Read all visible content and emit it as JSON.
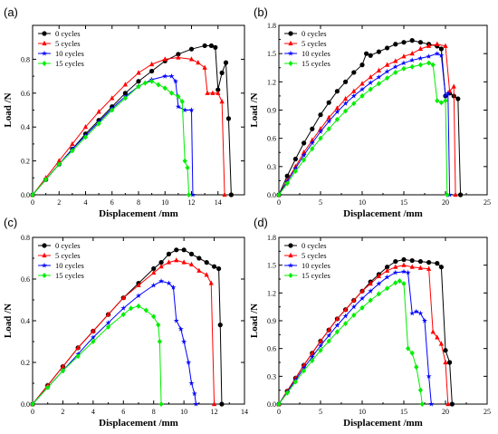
{
  "chart_data": [
    {
      "type": "line",
      "panel_label": "(a)",
      "xlabel": "Displacement /mm",
      "ylabel": "Load /N",
      "xlim": [
        0,
        16
      ],
      "ylim": [
        0,
        1.0
      ],
      "xticks": [
        "0",
        "2",
        "4",
        "6",
        "8",
        "10",
        "12",
        "14"
      ],
      "yticks": [
        "0.0",
        "0.2",
        "0.4",
        "0.6",
        "0.8"
      ],
      "legend_position": "top-left",
      "series": [
        {
          "name": "0 cycles",
          "color": "#000000",
          "marker": "circle",
          "x": [
            0,
            1,
            2,
            3,
            4,
            5,
            6,
            7,
            8,
            9,
            10,
            11,
            12,
            13,
            13.5,
            13.8,
            14.0,
            14.3,
            14.6,
            14.8,
            15.0
          ],
          "y": [
            0,
            0.09,
            0.18,
            0.27,
            0.36,
            0.44,
            0.52,
            0.6,
            0.67,
            0.73,
            0.79,
            0.83,
            0.86,
            0.88,
            0.88,
            0.87,
            0.62,
            0.72,
            0.78,
            0.45,
            0.0
          ]
        },
        {
          "name": "5 cycles",
          "color": "#ff0000",
          "marker": "triangle",
          "x": [
            0,
            1,
            2,
            3,
            4,
            5,
            6,
            7,
            8,
            9,
            10,
            11,
            12,
            12.5,
            13.0,
            13.2,
            13.6,
            14.0,
            14.3,
            14.5
          ],
          "y": [
            0,
            0.1,
            0.2,
            0.3,
            0.4,
            0.49,
            0.57,
            0.65,
            0.72,
            0.77,
            0.8,
            0.81,
            0.8,
            0.78,
            0.75,
            0.6,
            0.6,
            0.6,
            0.55,
            0.0
          ]
        },
        {
          "name": "10 cycles",
          "color": "#0000ff",
          "marker": "star",
          "x": [
            0,
            1,
            2,
            3,
            4,
            5,
            6,
            7,
            8,
            9,
            10,
            10.5,
            10.8,
            11.0,
            11.5,
            12.0,
            12.1
          ],
          "y": [
            0,
            0.09,
            0.18,
            0.27,
            0.35,
            0.43,
            0.51,
            0.58,
            0.64,
            0.68,
            0.7,
            0.7,
            0.67,
            0.52,
            0.5,
            0.5,
            0.0
          ]
        },
        {
          "name": "15 cycles",
          "color": "#00ee00",
          "marker": "diamond",
          "x": [
            0,
            1,
            2,
            3,
            4,
            5,
            6,
            7,
            8,
            8.5,
            9.0,
            9.5,
            10.0,
            10.5,
            11.0,
            11.3,
            11.5,
            11.7,
            11.8
          ],
          "y": [
            0,
            0.09,
            0.18,
            0.26,
            0.34,
            0.42,
            0.5,
            0.57,
            0.64,
            0.66,
            0.67,
            0.65,
            0.63,
            0.6,
            0.58,
            0.55,
            0.2,
            0.16,
            0.0
          ]
        }
      ]
    },
    {
      "type": "line",
      "panel_label": "(b)",
      "xlabel": "Displacement /mm",
      "ylabel": "Load /N",
      "xlim": [
        0,
        25
      ],
      "ylim": [
        0,
        1.8
      ],
      "xticks": [
        "0",
        "5",
        "10",
        "15",
        "20",
        "25"
      ],
      "yticks": [
        "0.0",
        "0.3",
        "0.6",
        "0.9",
        "1.2",
        "1.5",
        "1.8"
      ],
      "legend_position": "top-left",
      "series": [
        {
          "name": "0 cycles",
          "color": "#000000",
          "marker": "circle",
          "x": [
            0,
            1,
            2,
            3,
            4,
            5,
            6,
            7,
            8,
            9,
            10,
            10.5,
            11,
            12,
            13,
            14,
            15,
            16,
            17,
            18,
            19,
            19.5,
            20,
            20.5,
            21,
            21.5,
            21.8
          ],
          "y": [
            0,
            0.2,
            0.38,
            0.55,
            0.7,
            0.85,
            0.98,
            1.1,
            1.2,
            1.3,
            1.38,
            1.5,
            1.48,
            1.52,
            1.56,
            1.6,
            1.62,
            1.64,
            1.62,
            1.6,
            1.58,
            1.55,
            1.05,
            1.08,
            1.05,
            1.02,
            0.0
          ]
        },
        {
          "name": "5 cycles",
          "color": "#ff0000",
          "marker": "triangle",
          "x": [
            0,
            1,
            2,
            3,
            4,
            5,
            6,
            7,
            8,
            9,
            10,
            11,
            12,
            13,
            14,
            15,
            16,
            17,
            18,
            19,
            20,
            20.5,
            21,
            21.2
          ],
          "y": [
            0,
            0.15,
            0.3,
            0.45,
            0.58,
            0.7,
            0.82,
            0.92,
            1.02,
            1.1,
            1.18,
            1.25,
            1.32,
            1.38,
            1.42,
            1.47,
            1.5,
            1.55,
            1.58,
            1.6,
            1.58,
            1.1,
            1.15,
            0.0
          ]
        },
        {
          "name": "10 cycles",
          "color": "#0000ff",
          "marker": "star",
          "x": [
            0,
            1,
            2,
            3,
            4,
            5,
            6,
            7,
            8,
            9,
            10,
            11,
            12,
            13,
            14,
            15,
            16,
            17,
            18,
            19,
            19.5,
            20,
            20.3,
            20.5
          ],
          "y": [
            0,
            0.14,
            0.28,
            0.42,
            0.55,
            0.67,
            0.78,
            0.88,
            0.97,
            1.05,
            1.12,
            1.19,
            1.25,
            1.31,
            1.36,
            1.4,
            1.43,
            1.45,
            1.47,
            1.5,
            1.48,
            1.05,
            1.08,
            0.0
          ]
        },
        {
          "name": "15 cycles",
          "color": "#00ee00",
          "marker": "diamond",
          "x": [
            0,
            1,
            2,
            3,
            4,
            5,
            6,
            7,
            8,
            9,
            10,
            11,
            12,
            13,
            14,
            15,
            16,
            17,
            18,
            18.5,
            19,
            19.5,
            20,
            20.2
          ],
          "y": [
            0,
            0.12,
            0.25,
            0.37,
            0.49,
            0.6,
            0.7,
            0.8,
            0.89,
            0.97,
            1.05,
            1.12,
            1.18,
            1.24,
            1.3,
            1.34,
            1.36,
            1.38,
            1.4,
            1.38,
            1.0,
            0.98,
            1.0,
            0.0
          ]
        }
      ]
    },
    {
      "type": "line",
      "panel_label": "(c)",
      "xlabel": "Displacement /mm",
      "ylabel": "Load /N",
      "xlim": [
        0,
        14
      ],
      "ylim": [
        0,
        0.8
      ],
      "xticks": [
        "0",
        "2",
        "4",
        "6",
        "8",
        "10",
        "12",
        "14"
      ],
      "yticks": [
        "0.0",
        "0.2",
        "0.4",
        "0.6",
        "0.8"
      ],
      "legend_position": "top-left",
      "series": [
        {
          "name": "0 cycles",
          "color": "#000000",
          "marker": "circle",
          "x": [
            0,
            1,
            2,
            3,
            4,
            5,
            6,
            7,
            8,
            8.5,
            9,
            9.5,
            10,
            10.5,
            11,
            11.5,
            12,
            12.3,
            12.4,
            12.5
          ],
          "y": [
            0,
            0.09,
            0.18,
            0.27,
            0.35,
            0.43,
            0.51,
            0.58,
            0.65,
            0.68,
            0.72,
            0.74,
            0.74,
            0.72,
            0.7,
            0.68,
            0.66,
            0.65,
            0.38,
            0.0
          ]
        },
        {
          "name": "5 cycles",
          "color": "#ff0000",
          "marker": "triangle",
          "x": [
            0,
            1,
            2,
            3,
            4,
            5,
            6,
            7,
            8,
            8.5,
            9,
            9.5,
            10,
            10.5,
            11,
            11.5,
            11.8,
            12.0
          ],
          "y": [
            0,
            0.09,
            0.18,
            0.27,
            0.35,
            0.43,
            0.51,
            0.57,
            0.63,
            0.66,
            0.68,
            0.69,
            0.68,
            0.67,
            0.64,
            0.62,
            0.58,
            0.0
          ]
        },
        {
          "name": "10 cycles",
          "color": "#0000ff",
          "marker": "star",
          "x": [
            0,
            1,
            2,
            3,
            4,
            5,
            6,
            7,
            8,
            8.5,
            9,
            9.3,
            9.5,
            9.8,
            10.0,
            10.3,
            10.5,
            10.7,
            10.8
          ],
          "y": [
            0,
            0.08,
            0.16,
            0.24,
            0.32,
            0.39,
            0.46,
            0.52,
            0.57,
            0.59,
            0.58,
            0.56,
            0.4,
            0.36,
            0.3,
            0.2,
            0.1,
            0.05,
            0.0
          ]
        },
        {
          "name": "15 cycles",
          "color": "#00ee00",
          "marker": "diamond",
          "x": [
            0,
            1,
            2,
            3,
            4,
            5,
            6,
            6.5,
            7,
            7.5,
            8,
            8.3,
            8.4,
            8.5
          ],
          "y": [
            0,
            0.08,
            0.16,
            0.23,
            0.3,
            0.37,
            0.43,
            0.46,
            0.47,
            0.45,
            0.42,
            0.38,
            0.3,
            0.0
          ]
        }
      ]
    },
    {
      "type": "line",
      "panel_label": "(d)",
      "xlabel": "Displacement /mm",
      "ylabel": "Load /N",
      "xlim": [
        0,
        25
      ],
      "ylim": [
        0,
        1.8
      ],
      "xticks": [
        "0",
        "5",
        "10",
        "15",
        "20",
        "25"
      ],
      "yticks": [
        "0.0",
        "0.3",
        "0.6",
        "0.9",
        "1.2",
        "1.5",
        "1.8"
      ],
      "legend_position": "top-left",
      "series": [
        {
          "name": "0 cycles",
          "color": "#000000",
          "marker": "circle",
          "x": [
            0,
            1,
            2,
            3,
            4,
            5,
            6,
            7,
            8,
            9,
            10,
            11,
            12,
            13,
            14,
            15,
            16,
            17,
            18,
            19,
            19.5,
            20,
            20.5,
            20.8
          ],
          "y": [
            0,
            0.14,
            0.28,
            0.42,
            0.55,
            0.68,
            0.8,
            0.92,
            1.02,
            1.12,
            1.22,
            1.32,
            1.4,
            1.48,
            1.54,
            1.56,
            1.55,
            1.54,
            1.53,
            1.52,
            1.48,
            0.58,
            0.45,
            0.0
          ]
        },
        {
          "name": "5 cycles",
          "color": "#ff0000",
          "marker": "triangle",
          "x": [
            0,
            1,
            2,
            3,
            4,
            5,
            6,
            7,
            8,
            9,
            10,
            11,
            12,
            13,
            14,
            15,
            16,
            17,
            18,
            18.5,
            19,
            19.5,
            20,
            20.3
          ],
          "y": [
            0,
            0.14,
            0.28,
            0.42,
            0.55,
            0.68,
            0.8,
            0.92,
            1.02,
            1.12,
            1.22,
            1.3,
            1.38,
            1.44,
            1.48,
            1.5,
            1.48,
            1.47,
            1.46,
            0.78,
            0.72,
            0.65,
            0.45,
            0.0
          ]
        },
        {
          "name": "10 cycles",
          "color": "#0000ff",
          "marker": "star",
          "x": [
            0,
            1,
            2,
            3,
            4,
            5,
            6,
            7,
            8,
            9,
            10,
            11,
            12,
            13,
            14,
            15,
            15.5,
            16,
            16.5,
            17,
            17.5,
            18,
            18.3
          ],
          "y": [
            0,
            0.13,
            0.26,
            0.39,
            0.51,
            0.63,
            0.74,
            0.85,
            0.95,
            1.05,
            1.14,
            1.22,
            1.3,
            1.37,
            1.42,
            1.43,
            1.42,
            0.98,
            1.0,
            0.98,
            0.9,
            0.3,
            0.0
          ]
        },
        {
          "name": "15 cycles",
          "color": "#00ee00",
          "marker": "diamond",
          "x": [
            0,
            1,
            2,
            3,
            4,
            5,
            6,
            7,
            8,
            9,
            10,
            11,
            12,
            13,
            14,
            14.5,
            15,
            15.5,
            16,
            16.5,
            17,
            17.2
          ],
          "y": [
            0,
            0.12,
            0.24,
            0.36,
            0.47,
            0.58,
            0.68,
            0.78,
            0.87,
            0.96,
            1.04,
            1.12,
            1.19,
            1.25,
            1.31,
            1.33,
            1.3,
            0.6,
            0.55,
            0.4,
            0.15,
            0.0
          ]
        }
      ]
    }
  ]
}
